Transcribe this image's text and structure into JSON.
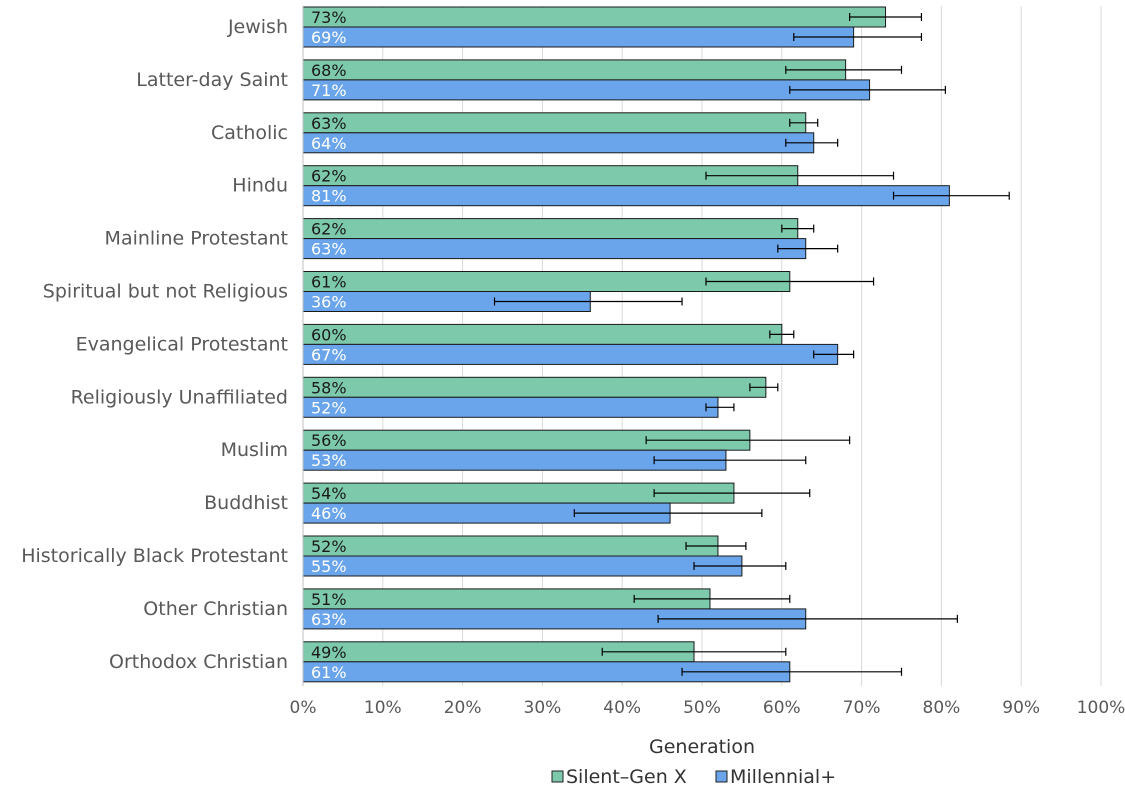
{
  "chart_data": {
    "type": "bar",
    "orientation": "horizontal",
    "categories": [
      "Jewish",
      "Latter-day Saint",
      "Catholic",
      "Hindu",
      "Mainline Protestant",
      "Spiritual but not Religious",
      "Evangelical Protestant",
      "Religiously Unaffiliated",
      "Muslim",
      "Buddhist",
      "Historically Black Protestant",
      "Other Christian",
      "Orthodox Christian"
    ],
    "series": [
      {
        "name": "Silent–Gen X",
        "color": "#7dc9ac",
        "values": [
          73,
          68,
          63,
          62,
          62,
          61,
          60,
          58,
          56,
          54,
          52,
          51,
          49
        ],
        "labels": [
          "73%",
          "68%",
          "63%",
          "62%",
          "62%",
          "61%",
          "60%",
          "58%",
          "56%",
          "54%",
          "52%",
          "51%",
          "49%"
        ],
        "error_low": [
          68.5,
          60.5,
          61,
          50.5,
          60,
          50.5,
          58.5,
          56,
          43,
          44,
          48,
          41.5,
          37.5
        ],
        "error_high": [
          77.5,
          75,
          64.5,
          74,
          64,
          71.5,
          61.5,
          59.5,
          68.5,
          63.5,
          55.5,
          61,
          60.5
        ]
      },
      {
        "name": "Millennial+",
        "color": "#6aa4ea",
        "values": [
          69,
          71,
          64,
          81,
          63,
          36,
          67,
          52,
          53,
          46,
          55,
          63,
          61
        ],
        "labels": [
          "69%",
          "71%",
          "64%",
          "81%",
          "63%",
          "36%",
          "67%",
          "52%",
          "53%",
          "46%",
          "55%",
          "63%",
          "61%"
        ],
        "error_low": [
          61.5,
          61,
          60.5,
          74,
          59.5,
          24,
          64,
          50.5,
          44,
          34,
          49,
          44.5,
          47.5
        ],
        "error_high": [
          77.5,
          80.5,
          67,
          88.5,
          67,
          47.5,
          69,
          54,
          63,
          57.5,
          60.5,
          82,
          75
        ]
      }
    ],
    "xlim": [
      0,
      100
    ],
    "x_ticks": [
      "0%",
      "10%",
      "20%",
      "30%",
      "40%",
      "50%",
      "60%",
      "70%",
      "80%",
      "90%",
      "100%"
    ],
    "xlabel": "",
    "ylabel": "",
    "legend_title": "Generation",
    "legend_position": "bottom",
    "grid": true
  }
}
